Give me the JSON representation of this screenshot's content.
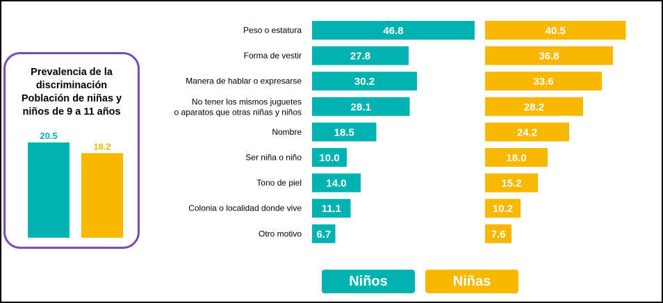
{
  "colors": {
    "ninos": "#00b3b0",
    "ninas": "#f9b700",
    "panel_border": "#7a4bb3"
  },
  "panel": {
    "title_lines": [
      "Prevalencia de la",
      "discriminación",
      "Población de niñas y",
      "niños de 9 a 11 años"
    ]
  },
  "legend": {
    "ninos": "Niños",
    "ninas": "Niñas"
  },
  "chart_data": [
    {
      "type": "bar",
      "title": "Prevalencia de la discriminación Población de niñas y niños de 9 a 11 años",
      "categories": [
        "Niños",
        "Niñas"
      ],
      "values": [
        20.5,
        18.2
      ],
      "value_labels": [
        "20.5",
        "18.2"
      ]
    },
    {
      "type": "bar",
      "orientation": "horizontal",
      "categories": [
        [
          "Peso o estatura"
        ],
        [
          "Forma de vestir"
        ],
        [
          "Manera de hablar o expresarse"
        ],
        [
          "No tener los mismos juguetes",
          "o aparatos que otras niñas y niños"
        ],
        [
          "Nombre"
        ],
        [
          "Ser niña o niño"
        ],
        [
          "Tono de piel"
        ],
        [
          "Colonia o localidad donde vive"
        ],
        [
          "Otro motivo"
        ]
      ],
      "series": [
        {
          "name": "Niños",
          "values": [
            46.8,
            27.8,
            30.2,
            28.1,
            18.5,
            10.0,
            14.0,
            11.1,
            6.7
          ],
          "value_labels": [
            "46.8",
            "27.8",
            "30.2",
            "28.1",
            "18.5",
            "10.0",
            "14.0",
            "11.1",
            "6.7"
          ]
        },
        {
          "name": "Niñas",
          "values": [
            40.5,
            36.8,
            33.6,
            28.2,
            24.2,
            18.0,
            15.2,
            10.2,
            7.6
          ],
          "value_labels": [
            "40.5",
            "36.8",
            "33.6",
            "28.2",
            "24.2",
            "18.0",
            "15.2",
            "10.2",
            "7.6"
          ]
        }
      ]
    }
  ]
}
